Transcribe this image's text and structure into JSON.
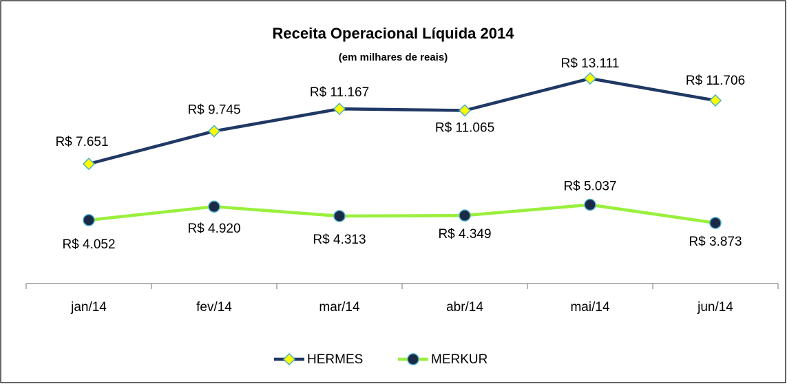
{
  "chart_data": {
    "type": "line",
    "title": "Receita Operacional Líquida 2014",
    "subtitle": "(em milhares de reais)",
    "categories": [
      "jan/14",
      "fev/14",
      "mar/14",
      "abr/14",
      "mai/14",
      "jun/14"
    ],
    "ylim": [
      0,
      16000
    ],
    "legend": "bottom",
    "series": [
      {
        "name": "HERMES",
        "color": "#1f3864",
        "marker": "diamond",
        "marker_color": "#ffff00",
        "values": [
          7651,
          9745,
          11167,
          11065,
          13111,
          11706
        ],
        "value_labels": [
          "R$ 7.651",
          "R$ 9.745",
          "R$ 11.167",
          "R$ 11.065",
          "R$ 13.111",
          "R$ 11.706"
        ]
      },
      {
        "name": "MERKUR",
        "color": "#99f03c",
        "marker": "circle",
        "marker_color": "#1b2a47",
        "values": [
          4052,
          4920,
          4313,
          4349,
          5037,
          3873
        ],
        "value_labels": [
          "R$ 4.052",
          "R$ 4.920",
          "R$ 4.313",
          "R$ 4.349",
          "R$ 5.037",
          "R$ 3.873"
        ]
      }
    ]
  }
}
